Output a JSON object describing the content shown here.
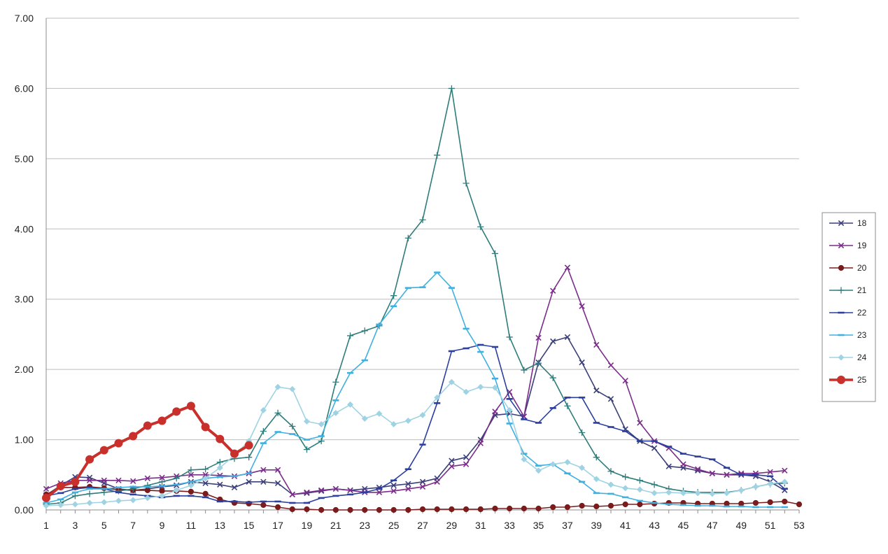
{
  "chart_data": {
    "type": "line",
    "title": "",
    "xlabel": "",
    "ylabel": "",
    "xlim": [
      1,
      53
    ],
    "ylim": [
      0,
      7
    ],
    "x_ticks": [
      1,
      3,
      5,
      7,
      9,
      11,
      13,
      15,
      17,
      19,
      21,
      23,
      25,
      27,
      29,
      31,
      33,
      35,
      37,
      39,
      41,
      43,
      45,
      47,
      49,
      51,
      53
    ],
    "y_ticks": [
      "0.00",
      "1.00",
      "2.00",
      "3.00",
      "4.00",
      "5.00",
      "6.00",
      "7.00"
    ],
    "grid": "horizontal",
    "legend_position": "right",
    "series": [
      {
        "name": "18",
        "color": "#3b3f7a",
        "marker": "x",
        "values": [
          0.21,
          0.35,
          0.47,
          0.46,
          0.38,
          0.3,
          0.28,
          0.3,
          0.33,
          0.35,
          0.4,
          0.38,
          0.36,
          0.32,
          0.4,
          0.4,
          0.38,
          0.22,
          0.24,
          0.27,
          0.3,
          0.28,
          0.3,
          0.32,
          0.35,
          0.37,
          0.4,
          0.45,
          0.7,
          0.75,
          1.0,
          1.35,
          1.37,
          1.33,
          2.1,
          2.4,
          2.46,
          2.1,
          1.7,
          1.58,
          1.15,
          0.98,
          0.88,
          0.62,
          0.6,
          0.56,
          0.52,
          0.5,
          0.5,
          0.48,
          0.4,
          0.28
        ]
      },
      {
        "name": "19",
        "color": "#7a2d8a",
        "marker": "x",
        "values": [
          0.3,
          0.38,
          0.42,
          0.42,
          0.42,
          0.42,
          0.41,
          0.45,
          0.46,
          0.48,
          0.5,
          0.5,
          0.49,
          0.48,
          0.52,
          0.57,
          0.57,
          0.22,
          0.25,
          0.28,
          0.3,
          0.28,
          0.25,
          0.25,
          0.27,
          0.3,
          0.33,
          0.4,
          0.62,
          0.65,
          0.95,
          1.4,
          1.68,
          1.33,
          2.45,
          3.12,
          3.45,
          2.9,
          2.35,
          2.06,
          1.84,
          1.24,
          0.98,
          0.88,
          0.65,
          0.58,
          0.52,
          0.5,
          0.52,
          0.52,
          0.54,
          0.56
        ]
      },
      {
        "name": "20",
        "color": "#7b1b1b",
        "marker": "circle",
        "values": [
          0.22,
          0.32,
          0.32,
          0.33,
          0.31,
          0.29,
          0.28,
          0.28,
          0.27,
          0.27,
          0.26,
          0.23,
          0.15,
          0.1,
          0.09,
          0.07,
          0.04,
          0.01,
          0.01,
          0.0,
          0.0,
          0.0,
          0.0,
          0.0,
          0.0,
          0.0,
          0.01,
          0.01,
          0.01,
          0.01,
          0.01,
          0.02,
          0.02,
          0.02,
          0.02,
          0.04,
          0.04,
          0.06,
          0.05,
          0.06,
          0.08,
          0.08,
          0.09,
          0.1,
          0.1,
          0.09,
          0.09,
          0.09,
          0.09,
          0.1,
          0.11,
          0.12,
          0.08
        ]
      },
      {
        "name": "21",
        "color": "#2e7d7b",
        "marker": "plus",
        "values": [
          0.08,
          0.1,
          0.2,
          0.23,
          0.25,
          0.27,
          0.3,
          0.35,
          0.4,
          0.45,
          0.57,
          0.58,
          0.68,
          0.73,
          0.75,
          1.12,
          1.38,
          1.19,
          0.86,
          0.98,
          1.82,
          2.48,
          2.55,
          2.62,
          3.05,
          3.87,
          4.13,
          5.05,
          6.0,
          4.65,
          4.03,
          3.65,
          2.46,
          1.99,
          2.09,
          1.88,
          1.48,
          1.1,
          0.75,
          0.55,
          0.47,
          0.42,
          0.36,
          0.3,
          0.27,
          0.25,
          0.25,
          0.25,
          0.28,
          0.33,
          0.37,
          0.38
        ]
      },
      {
        "name": "22",
        "color": "#2a3fa0",
        "marker": "dash",
        "values": [
          0.2,
          0.24,
          0.3,
          0.32,
          0.3,
          0.25,
          0.22,
          0.2,
          0.18,
          0.2,
          0.2,
          0.18,
          0.12,
          0.12,
          0.11,
          0.12,
          0.12,
          0.1,
          0.1,
          0.17,
          0.2,
          0.22,
          0.25,
          0.3,
          0.42,
          0.58,
          0.93,
          1.52,
          2.26,
          2.3,
          2.35,
          2.32,
          1.58,
          1.29,
          1.24,
          1.45,
          1.6,
          1.6,
          1.24,
          1.18,
          1.12,
          0.98,
          0.98,
          0.9,
          0.8,
          0.76,
          0.72,
          0.6,
          0.5,
          0.5,
          0.48,
          0.3
        ]
      },
      {
        "name": "23",
        "color": "#3fb0e0",
        "marker": "dash",
        "values": [
          0.1,
          0.15,
          0.25,
          0.3,
          0.3,
          0.32,
          0.33,
          0.33,
          0.34,
          0.36,
          0.4,
          0.45,
          0.47,
          0.48,
          0.52,
          0.95,
          1.11,
          1.08,
          1.0,
          1.05,
          1.56,
          1.95,
          2.13,
          2.64,
          2.9,
          3.16,
          3.17,
          3.38,
          3.16,
          2.58,
          2.25,
          1.87,
          1.23,
          0.8,
          0.63,
          0.65,
          0.52,
          0.4,
          0.24,
          0.23,
          0.18,
          0.13,
          0.1,
          0.08,
          0.07,
          0.06,
          0.06,
          0.05,
          0.05,
          0.04,
          0.04,
          0.04
        ]
      },
      {
        "name": "24",
        "color": "#9fd3e3",
        "marker": "diamond",
        "values": [
          0.06,
          0.07,
          0.08,
          0.1,
          0.11,
          0.13,
          0.14,
          0.17,
          0.2,
          0.28,
          0.35,
          0.45,
          0.6,
          0.78,
          0.98,
          1.42,
          1.75,
          1.72,
          1.26,
          1.22,
          1.38,
          1.5,
          1.3,
          1.37,
          1.22,
          1.27,
          1.35,
          1.6,
          1.82,
          1.68,
          1.75,
          1.74,
          1.42,
          0.72,
          0.56,
          0.65,
          0.68,
          0.6,
          0.44,
          0.36,
          0.31,
          0.29,
          0.24,
          0.25,
          0.24,
          0.24,
          0.23,
          0.24,
          0.28,
          0.33,
          0.37,
          0.4
        ]
      },
      {
        "name": "25",
        "color": "#c9302c",
        "marker": "circle",
        "bold": true,
        "values": [
          0.17,
          0.34,
          0.4,
          0.72,
          0.85,
          0.95,
          1.05,
          1.2,
          1.27,
          1.4,
          1.48,
          1.18,
          1.01,
          0.8,
          0.92
        ]
      }
    ]
  }
}
